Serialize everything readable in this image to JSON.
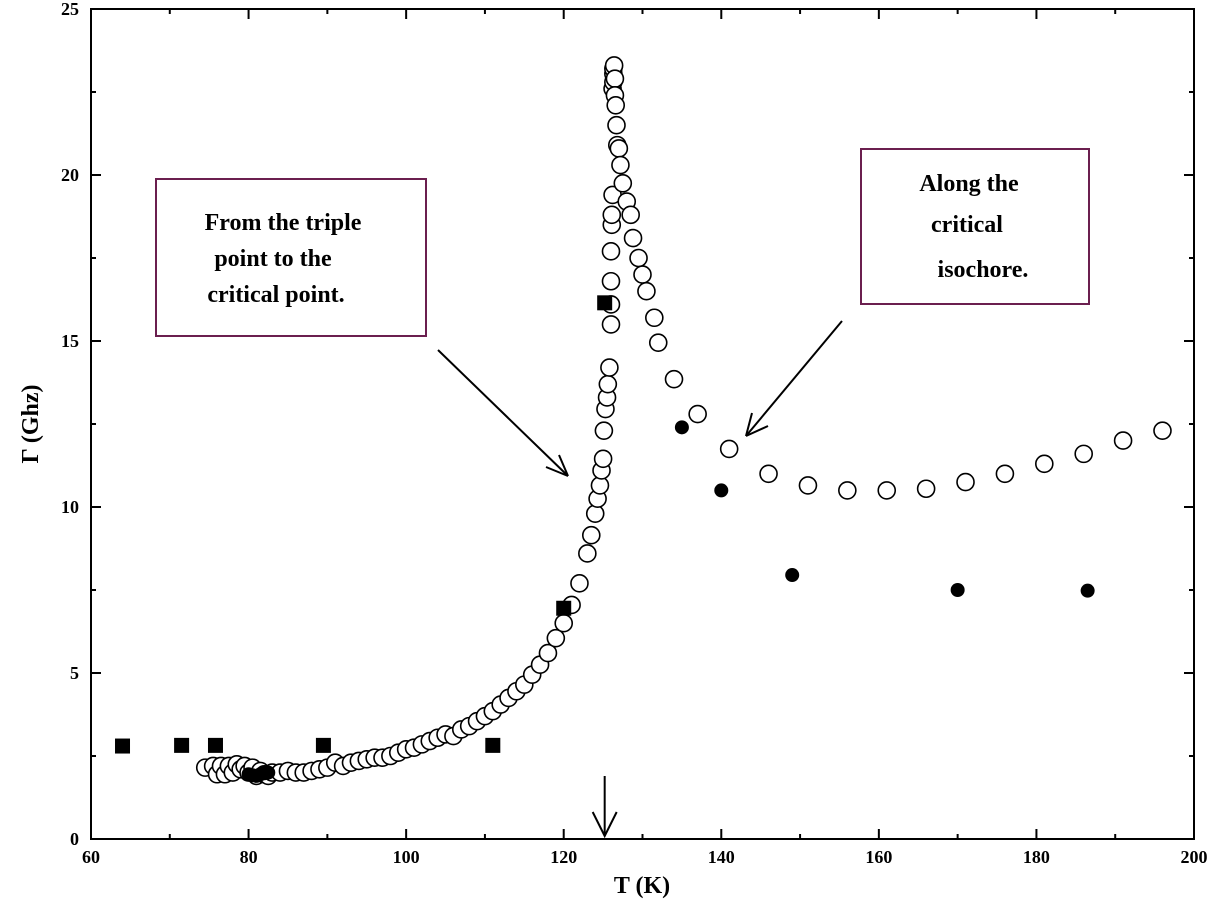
{
  "chart_data": {
    "type": "scatter",
    "xlabel": "T (K)",
    "ylabel": "Γ (Ghz)",
    "xlim": [
      60,
      200
    ],
    "ylim": [
      0,
      25
    ],
    "x_ticks": [
      60,
      80,
      100,
      120,
      140,
      160,
      180,
      200
    ],
    "y_ticks": [
      0,
      5,
      10,
      15,
      20,
      25
    ],
    "grid": false,
    "critical_temperature_marker": 125.2,
    "series": [
      {
        "marker": "open-circle",
        "points": [
          [
            74.5,
            2.15
          ],
          [
            75.5,
            2.2
          ],
          [
            76.0,
            1.95
          ],
          [
            76.5,
            2.2
          ],
          [
            77.0,
            1.95
          ],
          [
            77.5,
            2.2
          ],
          [
            78.0,
            2.0
          ],
          [
            78.5,
            2.25
          ],
          [
            79.0,
            2.1
          ],
          [
            79.5,
            2.2
          ],
          [
            80.0,
            2.0
          ],
          [
            80.5,
            2.15
          ],
          [
            81.0,
            1.9
          ],
          [
            81.5,
            2.05
          ],
          [
            82.0,
            1.95
          ],
          [
            82.5,
            1.9
          ],
          [
            83.0,
            2.0
          ],
          [
            84.0,
            2.0
          ],
          [
            85.0,
            2.05
          ],
          [
            86.0,
            2.0
          ],
          [
            87.0,
            2.0
          ],
          [
            88.0,
            2.05
          ],
          [
            89.0,
            2.1
          ],
          [
            90.0,
            2.15
          ],
          [
            91.0,
            2.3
          ],
          [
            92.0,
            2.2
          ],
          [
            93.0,
            2.3
          ],
          [
            94.0,
            2.35
          ],
          [
            95.0,
            2.4
          ],
          [
            96.0,
            2.45
          ],
          [
            97.0,
            2.45
          ],
          [
            98.0,
            2.5
          ],
          [
            99.0,
            2.6
          ],
          [
            100.0,
            2.7
          ],
          [
            101.0,
            2.75
          ],
          [
            102.0,
            2.85
          ],
          [
            103.0,
            2.95
          ],
          [
            104.0,
            3.05
          ],
          [
            105.0,
            3.15
          ],
          [
            106.0,
            3.1
          ],
          [
            107.0,
            3.3
          ],
          [
            108.0,
            3.4
          ],
          [
            109.0,
            3.55
          ],
          [
            110.0,
            3.7
          ],
          [
            111.0,
            3.85
          ],
          [
            112.0,
            4.05
          ],
          [
            113.0,
            4.25
          ],
          [
            114.0,
            4.45
          ],
          [
            115.0,
            4.65
          ],
          [
            116.0,
            4.95
          ],
          [
            117.0,
            5.25
          ],
          [
            118.0,
            5.6
          ],
          [
            119.0,
            6.05
          ],
          [
            120.0,
            6.5
          ],
          [
            121.0,
            7.05
          ],
          [
            122.0,
            7.7
          ],
          [
            123.0,
            8.6
          ],
          [
            123.5,
            9.15
          ],
          [
            124.0,
            9.8
          ],
          [
            124.3,
            10.25
          ],
          [
            124.6,
            10.65
          ],
          [
            124.8,
            11.1
          ],
          [
            125.0,
            11.45
          ],
          [
            125.1,
            12.3
          ],
          [
            125.3,
            12.95
          ],
          [
            125.5,
            13.3
          ],
          [
            125.6,
            13.7
          ],
          [
            125.8,
            14.2
          ],
          [
            126.0,
            15.5
          ],
          [
            126.0,
            16.1
          ],
          [
            126.0,
            16.8
          ],
          [
            126.0,
            17.7
          ],
          [
            126.1,
            18.5
          ],
          [
            126.1,
            18.8
          ],
          [
            126.2,
            19.4
          ],
          [
            126.2,
            22.6
          ],
          [
            126.3,
            22.8
          ],
          [
            126.3,
            23.05
          ],
          [
            126.3,
            23.2
          ],
          [
            126.4,
            23.3
          ],
          [
            126.5,
            22.9
          ],
          [
            126.5,
            22.4
          ],
          [
            126.6,
            22.1
          ],
          [
            126.7,
            21.5
          ],
          [
            126.8,
            20.9
          ],
          [
            127.0,
            20.8
          ],
          [
            127.2,
            20.3
          ],
          [
            127.5,
            19.75
          ],
          [
            128.0,
            19.2
          ],
          [
            128.5,
            18.8
          ],
          [
            128.8,
            18.1
          ],
          [
            129.5,
            17.5
          ],
          [
            130.0,
            17.0
          ],
          [
            130.5,
            16.5
          ],
          [
            131.5,
            15.7
          ],
          [
            132.0,
            14.95
          ],
          [
            134.0,
            13.85
          ],
          [
            137.0,
            12.8
          ],
          [
            141.0,
            11.75
          ],
          [
            146.0,
            11.0
          ],
          [
            151.0,
            10.65
          ],
          [
            156.0,
            10.5
          ],
          [
            161.0,
            10.5
          ],
          [
            166.0,
            10.55
          ],
          [
            171.0,
            10.75
          ],
          [
            176.0,
            11.0
          ],
          [
            181.0,
            11.3
          ],
          [
            186.0,
            11.6
          ],
          [
            191.0,
            12.0
          ],
          [
            196.0,
            12.3
          ]
        ]
      },
      {
        "marker": "filled-square",
        "points": [
          [
            64.0,
            2.8
          ],
          [
            71.5,
            2.82
          ],
          [
            75.8,
            2.82
          ],
          [
            89.5,
            2.82
          ],
          [
            111.0,
            2.82
          ],
          [
            120.0,
            6.95
          ],
          [
            125.2,
            16.15
          ]
        ]
      },
      {
        "marker": "filled-circle",
        "points": [
          [
            80.0,
            1.95
          ],
          [
            80.5,
            1.92
          ],
          [
            81.0,
            1.9
          ],
          [
            81.5,
            1.95
          ],
          [
            82.0,
            1.98
          ],
          [
            82.5,
            2.0
          ],
          [
            135.0,
            12.4
          ],
          [
            140.0,
            10.5
          ],
          [
            149.0,
            7.95
          ],
          [
            170.0,
            7.5
          ],
          [
            186.5,
            7.48
          ]
        ]
      }
    ],
    "annotations": [
      {
        "lines": [
          "From the triple",
          "point to the",
          "critical point."
        ]
      },
      {
        "lines": [
          "Along the",
          "critical",
          "isochore."
        ]
      }
    ]
  }
}
